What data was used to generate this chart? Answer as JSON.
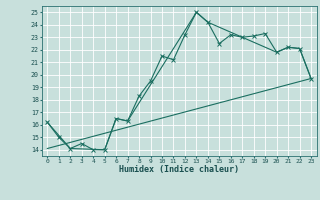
{
  "xlabel": "Humidex (Indice chaleur)",
  "xlim": [
    -0.5,
    23.5
  ],
  "ylim": [
    13.5,
    25.5
  ],
  "xticks": [
    0,
    1,
    2,
    3,
    4,
    5,
    6,
    7,
    8,
    9,
    10,
    11,
    12,
    13,
    14,
    15,
    16,
    17,
    18,
    19,
    20,
    21,
    22,
    23
  ],
  "yticks": [
    14,
    15,
    16,
    17,
    18,
    19,
    20,
    21,
    22,
    23,
    24,
    25
  ],
  "bg_color": "#c8e0dc",
  "grid_color": "#ffffff",
  "line_color": "#1a6e60",
  "line1_x": [
    0,
    1,
    2,
    3,
    4,
    5,
    6,
    7,
    8,
    9,
    10,
    11,
    12,
    13,
    14,
    15,
    16,
    17,
    18,
    19,
    20,
    21,
    22,
    23
  ],
  "line1_y": [
    16.2,
    15.0,
    14.1,
    14.5,
    14.0,
    14.0,
    16.5,
    16.3,
    18.3,
    19.5,
    21.5,
    21.2,
    23.2,
    25.0,
    24.2,
    22.5,
    23.2,
    23.0,
    23.1,
    23.3,
    21.8,
    22.2,
    22.1,
    19.7
  ],
  "line2_x": [
    0,
    2,
    5,
    6,
    7,
    13,
    14,
    20,
    21,
    22,
    23
  ],
  "line2_y": [
    16.2,
    14.1,
    14.0,
    16.5,
    16.3,
    25.0,
    24.2,
    21.8,
    22.2,
    22.1,
    19.7
  ],
  "line3_x": [
    0,
    23
  ],
  "line3_y": [
    14.1,
    19.7
  ]
}
